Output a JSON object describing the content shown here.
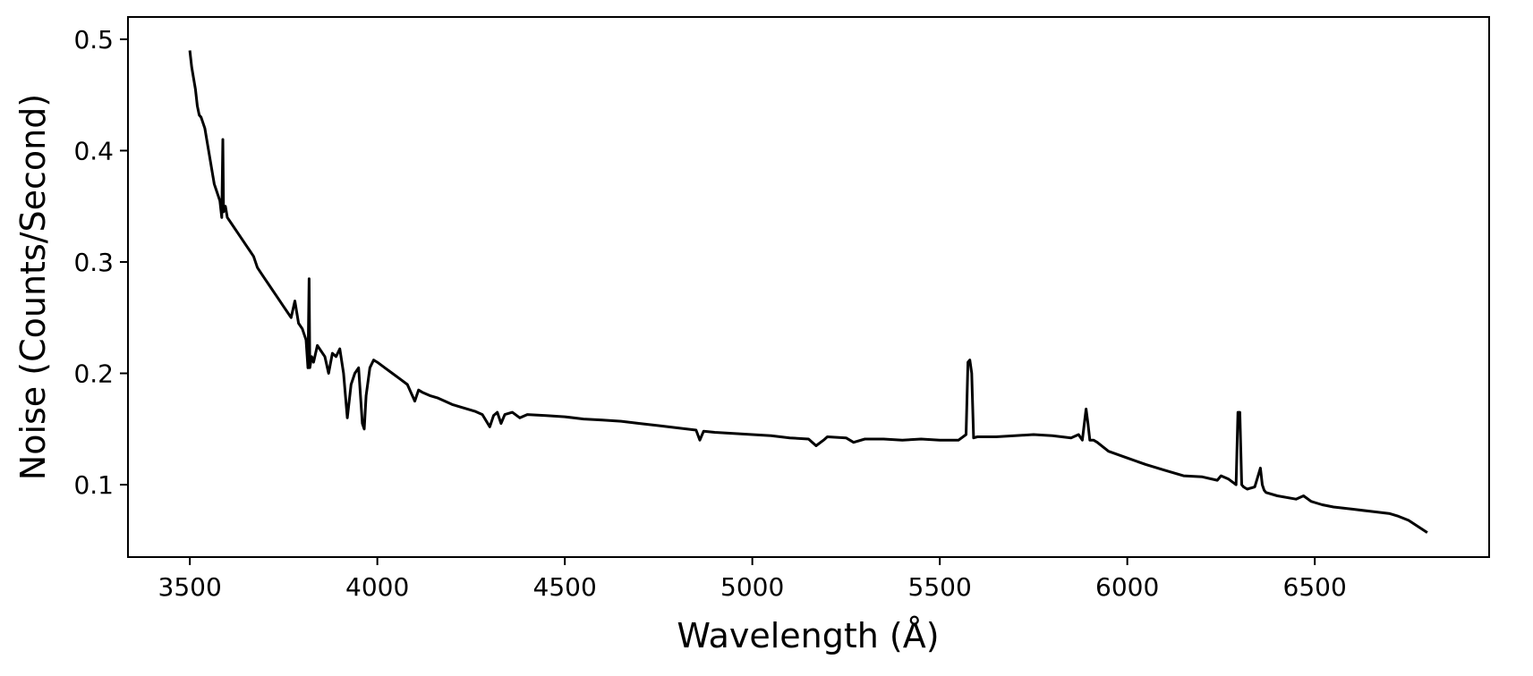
{
  "chart_data": {
    "type": "line",
    "title": "",
    "xlabel": "Wavelength (Å)",
    "ylabel": "Noise (Counts/Second)",
    "xlim": [
      3335,
      6965
    ],
    "ylim": [
      0.035,
      0.52
    ],
    "xticks": [
      3500,
      4000,
      4500,
      5000,
      5500,
      6000,
      6500
    ],
    "yticks": [
      0.1,
      0.2,
      0.3,
      0.4,
      0.5
    ],
    "xtick_labels": [
      "3500",
      "4000",
      "4500",
      "5000",
      "5500",
      "6000",
      "6500"
    ],
    "ytick_labels": [
      "0.1",
      "0.2",
      "0.3",
      "0.4",
      "0.5"
    ],
    "grid": false,
    "legend": "none",
    "line_color": "#000000",
    "series": [
      {
        "x": [
          3500,
          3505,
          3510,
          3515,
          3520,
          3525,
          3530,
          3535,
          3540,
          3545,
          3550,
          3555,
          3560,
          3565,
          3570,
          3575,
          3580,
          3585,
          3588,
          3590,
          3595,
          3600,
          3610,
          3620,
          3630,
          3640,
          3650,
          3660,
          3670,
          3680,
          3690,
          3700,
          3710,
          3720,
          3730,
          3740,
          3750,
          3760,
          3770,
          3780,
          3790,
          3800,
          3810,
          3815,
          3818,
          3820,
          3825,
          3830,
          3840,
          3850,
          3860,
          3870,
          3880,
          3890,
          3900,
          3910,
          3920,
          3930,
          3940,
          3950,
          3960,
          3965,
          3970,
          3980,
          3990,
          4000,
          4020,
          4040,
          4060,
          4080,
          4100,
          4110,
          4120,
          4140,
          4160,
          4180,
          4200,
          4220,
          4240,
          4260,
          4280,
          4300,
          4310,
          4320,
          4330,
          4340,
          4360,
          4380,
          4400,
          4450,
          4500,
          4550,
          4600,
          4650,
          4700,
          4750,
          4800,
          4850,
          4860,
          4870,
          4900,
          4950,
          5000,
          5050,
          5100,
          5150,
          5170,
          5190,
          5200,
          5250,
          5270,
          5300,
          5350,
          5400,
          5450,
          5500,
          5550,
          5570,
          5575,
          5580,
          5585,
          5590,
          5600,
          5650,
          5700,
          5750,
          5800,
          5850,
          5870,
          5880,
          5890,
          5895,
          5900,
          5910,
          5920,
          5950,
          6000,
          6050,
          6100,
          6150,
          6200,
          6240,
          6250,
          6270,
          6290,
          6295,
          6300,
          6305,
          6310,
          6320,
          6340,
          6355,
          6360,
          6365,
          6370,
          6400,
          6450,
          6470,
          6490,
          6500,
          6520,
          6550,
          6600,
          6650,
          6700,
          6720,
          6750,
          6800
        ],
        "y": [
          0.49,
          0.475,
          0.465,
          0.455,
          0.44,
          0.432,
          0.43,
          0.425,
          0.42,
          0.41,
          0.4,
          0.39,
          0.38,
          0.37,
          0.365,
          0.36,
          0.355,
          0.34,
          0.41,
          0.345,
          0.35,
          0.34,
          0.335,
          0.33,
          0.325,
          0.32,
          0.315,
          0.31,
          0.305,
          0.295,
          0.29,
          0.285,
          0.28,
          0.275,
          0.27,
          0.265,
          0.26,
          0.255,
          0.25,
          0.265,
          0.245,
          0.24,
          0.23,
          0.205,
          0.285,
          0.205,
          0.215,
          0.21,
          0.225,
          0.22,
          0.215,
          0.2,
          0.218,
          0.215,
          0.222,
          0.2,
          0.16,
          0.19,
          0.2,
          0.205,
          0.155,
          0.15,
          0.18,
          0.205,
          0.212,
          0.21,
          0.205,
          0.2,
          0.195,
          0.19,
          0.175,
          0.185,
          0.183,
          0.18,
          0.178,
          0.175,
          0.172,
          0.17,
          0.168,
          0.166,
          0.163,
          0.152,
          0.162,
          0.165,
          0.155,
          0.163,
          0.165,
          0.16,
          0.163,
          0.162,
          0.161,
          0.159,
          0.158,
          0.157,
          0.155,
          0.153,
          0.151,
          0.149,
          0.14,
          0.148,
          0.147,
          0.146,
          0.145,
          0.144,
          0.142,
          0.141,
          0.135,
          0.14,
          0.143,
          0.142,
          0.138,
          0.141,
          0.141,
          0.14,
          0.141,
          0.14,
          0.14,
          0.145,
          0.21,
          0.212,
          0.2,
          0.142,
          0.143,
          0.143,
          0.144,
          0.145,
          0.144,
          0.142,
          0.145,
          0.14,
          0.168,
          0.155,
          0.14,
          0.14,
          0.138,
          0.13,
          0.124,
          0.118,
          0.113,
          0.108,
          0.107,
          0.104,
          0.108,
          0.105,
          0.1,
          0.165,
          0.165,
          0.1,
          0.098,
          0.096,
          0.098,
          0.115,
          0.1,
          0.095,
          0.093,
          0.09,
          0.087,
          0.09,
          0.085,
          0.084,
          0.082,
          0.08,
          0.078,
          0.076,
          0.074,
          0.072,
          0.068,
          0.057
        ]
      }
    ]
  }
}
